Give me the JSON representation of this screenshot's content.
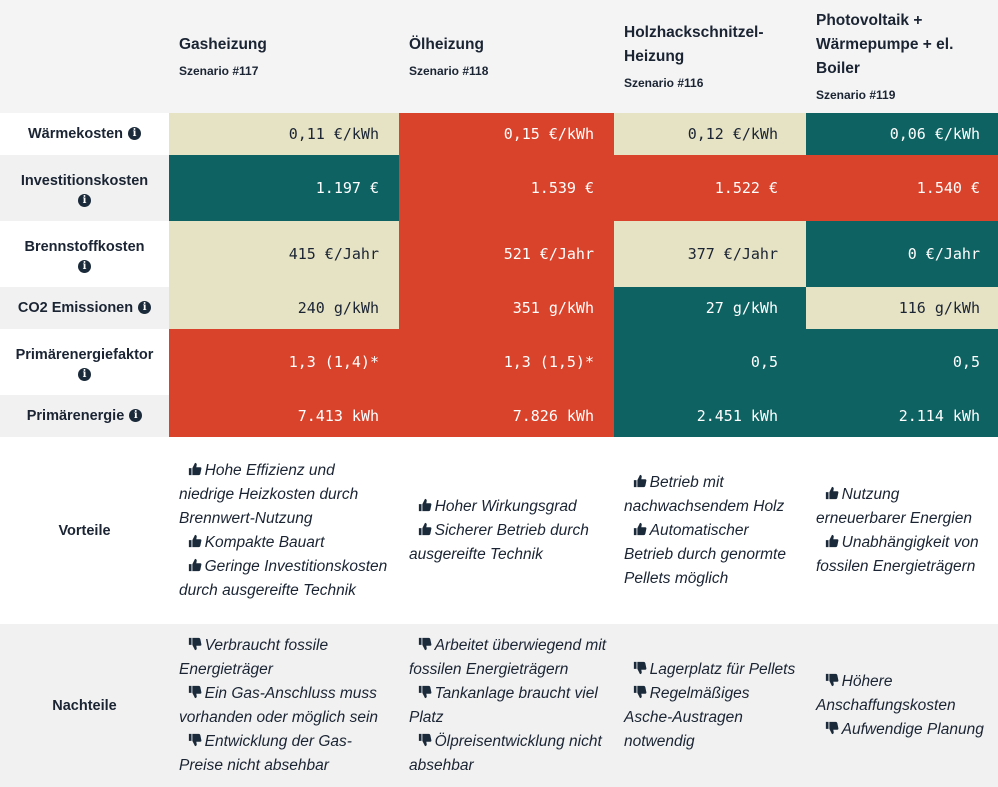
{
  "columns": [
    {
      "title": "Gasheizung",
      "subtitle": "Szenario #117"
    },
    {
      "title": "Ölheizung",
      "subtitle": "Szenario #118"
    },
    {
      "title": "Holzhackschnitzel-Heizung",
      "subtitle": "Szenario #116"
    },
    {
      "title": "Photovoltaik + Wärmepumpe + el. Boiler",
      "subtitle": "Szenario #119"
    }
  ],
  "rows": [
    {
      "label": "Wärmekosten",
      "values": [
        "0,11 €/kWh",
        "0,15 €/kWh",
        "0,12 €/kWh",
        "0,06 €/kWh"
      ],
      "colors": [
        "beige",
        "red",
        "beige",
        "teal"
      ]
    },
    {
      "label": "Investitionskosten",
      "values": [
        "1.197 €",
        "1.539 €",
        "1.522 €",
        "1.540 €"
      ],
      "colors": [
        "teal",
        "red",
        "red",
        "red"
      ]
    },
    {
      "label": "Brennstoffkosten",
      "values": [
        "415 €/Jahr",
        "521 €/Jahr",
        "377 €/Jahr",
        "0 €/Jahr"
      ],
      "colors": [
        "beige",
        "red",
        "beige",
        "teal"
      ]
    },
    {
      "label": "CO2 Emissionen",
      "values": [
        "240 g/kWh",
        "351 g/kWh",
        "27 g/kWh",
        "116 g/kWh"
      ],
      "colors": [
        "beige",
        "red",
        "teal",
        "beige"
      ]
    },
    {
      "label": "Primärenergiefaktor",
      "values": [
        "1,3 (1,4)*",
        "1,3 (1,5)*",
        "0,5",
        "0,5"
      ],
      "colors": [
        "red",
        "red",
        "teal",
        "teal"
      ]
    },
    {
      "label": "Primärenergie",
      "values": [
        "7.413 kWh",
        "7.826 kWh",
        "2.451 kWh",
        "2.114 kWh"
      ],
      "colors": [
        "red",
        "red",
        "teal",
        "teal"
      ]
    }
  ],
  "pros": {
    "label": "Vorteile",
    "columns": [
      [
        "Hohe Effizienz und niedrige Heizkosten durch Brennwert-Nutzung",
        "Kompakte Bauart",
        "Geringe Investitionskosten durch ausgereifte Technik"
      ],
      [
        "Hoher Wirkungsgrad",
        "Sicherer Betrieb durch ausgereifte Technik"
      ],
      [
        "Betrieb mit nachwachsendem Holz",
        "Automatischer Betrieb durch genormte Pellets möglich"
      ],
      [
        "Nutzung erneuerbarer Energien",
        "Unabhängigkeit von fossilen Energieträgern"
      ]
    ]
  },
  "cons": {
    "label": "Nachteile",
    "columns": [
      [
        "Verbraucht fossile Energieträger",
        "Ein Gas-Anschluss muss vorhanden oder möglich sein",
        "Entwicklung der Gas-Preise nicht absehbar"
      ],
      [
        "Arbeitet überwiegend mit fossilen Energieträgern",
        "Tankanlage braucht viel Platz",
        "Ölpreisentwicklung nicht absehbar"
      ],
      [
        "Lagerplatz für Pellets",
        "Regelmäßiges Asche-Austragen notwendig"
      ],
      [
        "Höhere Anschaffungskosten",
        "Aufwendige Planung"
      ]
    ]
  },
  "colors": {
    "beige": "#e6e2c4",
    "red": "#d9432b",
    "teal": "#0f6262",
    "header_bg": "#f4f4f4",
    "text": "#1a2433"
  },
  "icons": {
    "info": "info-icon",
    "pro": "thumbs-up-icon",
    "con": "thumbs-down-icon"
  }
}
